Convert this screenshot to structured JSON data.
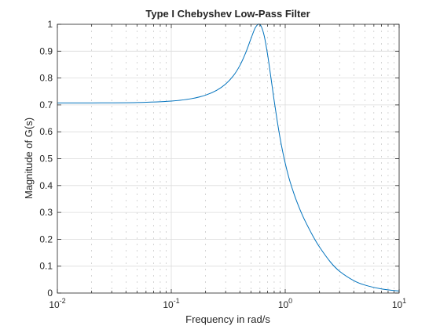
{
  "chart_data": {
    "type": "line",
    "title": "Type I Chebyshev Low-Pass Filter",
    "xlabel": "Frequency in rad/s",
    "ylabel": "Magnitude of G(s)",
    "xscale": "log",
    "xlim": [
      0.01,
      10
    ],
    "ylim": [
      0,
      1
    ],
    "grid": "on (major and minor)",
    "x_ticks": [
      {
        "value": 0.01,
        "base": "10",
        "exp": "-2"
      },
      {
        "value": 0.1,
        "base": "10",
        "exp": "-1"
      },
      {
        "value": 1,
        "base": "10",
        "exp": "0"
      },
      {
        "value": 10,
        "base": "10",
        "exp": "1"
      }
    ],
    "y_ticks": [
      {
        "value": 0,
        "label": "0"
      },
      {
        "value": 0.1,
        "label": "0.1"
      },
      {
        "value": 0.2,
        "label": "0.2"
      },
      {
        "value": 0.3,
        "label": "0.3"
      },
      {
        "value": 0.4,
        "label": "0.4"
      },
      {
        "value": 0.5,
        "label": "0.5"
      },
      {
        "value": 0.6,
        "label": "0.6"
      },
      {
        "value": 0.7,
        "label": "0.7"
      },
      {
        "value": 0.8,
        "label": "0.8"
      },
      {
        "value": 0.9,
        "label": "0.9"
      },
      {
        "value": 1,
        "label": "1"
      }
    ],
    "series": [
      {
        "name": "G(s)",
        "color": "#0072bd",
        "x": [
          0.01,
          0.02,
          0.05,
          0.1,
          0.15,
          0.2,
          0.25,
          0.3,
          0.35,
          0.4,
          0.45,
          0.5,
          0.55,
          0.6,
          0.65,
          0.7,
          0.75,
          0.8,
          0.85,
          0.9,
          0.95,
          1.0,
          1.05,
          1.1,
          1.2,
          1.3,
          1.4,
          1.5,
          1.75,
          2.0,
          2.5,
          3.0,
          4.0,
          5.0,
          7.0,
          10.0
        ],
        "values": [
          0.7072,
          0.7075,
          0.7089,
          0.7143,
          0.7232,
          0.7363,
          0.7541,
          0.7776,
          0.808,
          0.8468,
          0.8942,
          0.9462,
          0.9894,
          0.9992,
          0.9619,
          0.888,
          0.8002,
          0.7155,
          0.6411,
          0.5784,
          0.5263,
          0.4831,
          0.4469,
          0.4159,
          0.3665,
          0.327,
          0.2944,
          0.2669,
          0.2121,
          0.1712,
          0.1148,
          0.081,
          0.0462,
          0.0297,
          0.0153,
          0.0075
        ]
      }
    ]
  }
}
